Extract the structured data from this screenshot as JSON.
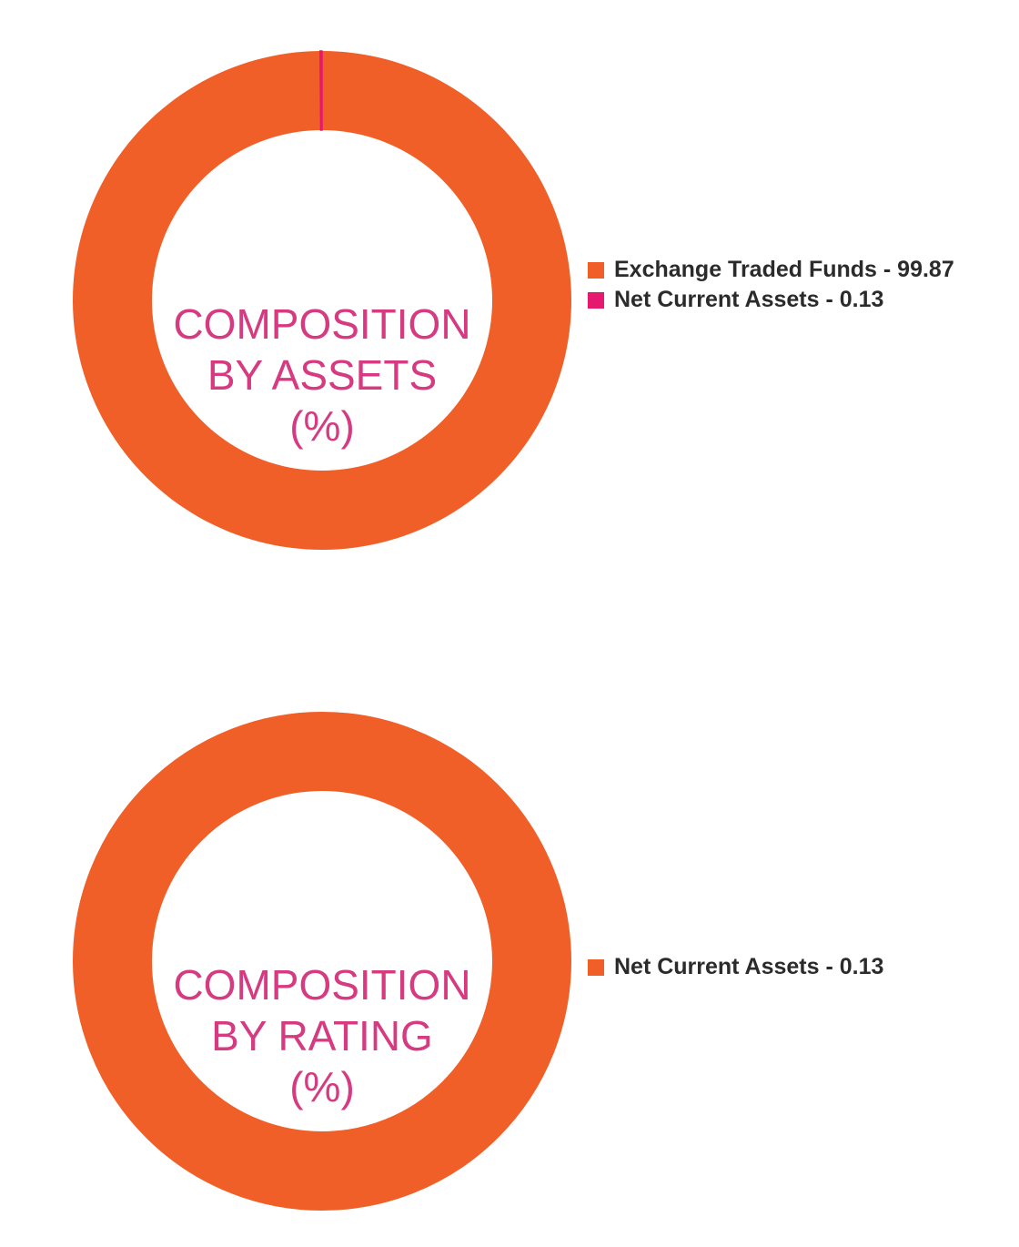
{
  "colors": {
    "orange": "#f05f28",
    "pink": "#e5196e",
    "title_pink": "#d63a80",
    "legend_text": "#2b2b2b"
  },
  "chart_data": [
    {
      "type": "pie",
      "title_lines": [
        "COMPOSITION",
        "BY ASSETS",
        "(%)"
      ],
      "categories": [
        "Exchange Traded Funds",
        "Net Current Assets"
      ],
      "values": [
        99.87,
        0.13
      ],
      "colors": [
        "#f05f28",
        "#e5196e"
      ],
      "legend": [
        {
          "label": "Exchange Traded Funds - 99.87",
          "color": "#f05f28"
        },
        {
          "label": "Net Current Assets - 0.13",
          "color": "#e5196e"
        }
      ],
      "legend_position": "right"
    },
    {
      "type": "pie",
      "title_lines": [
        "COMPOSITION",
        "BY RATING",
        "(%)"
      ],
      "categories": [
        "Net Current Assets"
      ],
      "values": [
        0.13
      ],
      "colors": [
        "#f05f28"
      ],
      "legend": [
        {
          "label": "Net Current Assets - 0.13",
          "color": "#f05f28"
        }
      ],
      "legend_position": "right"
    }
  ]
}
